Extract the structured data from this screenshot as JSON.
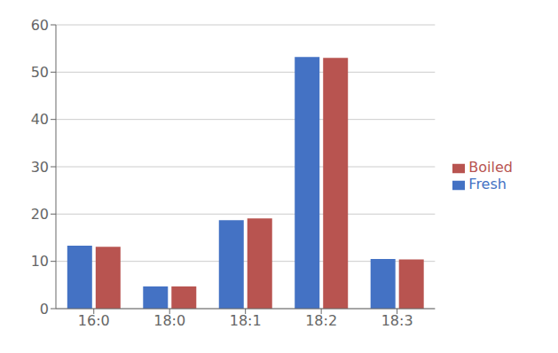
{
  "chart_data": {
    "type": "bar",
    "categories": [
      "16:0",
      "18:0",
      "18:1",
      "18:2",
      "18:3"
    ],
    "series": [
      {
        "name": "Fresh",
        "color": "#4472C4",
        "values": [
          13.3,
          4.7,
          18.7,
          53.2,
          10.5
        ]
      },
      {
        "name": "Boiled",
        "color": "#B85450",
        "values": [
          13.1,
          4.7,
          19.1,
          53.0,
          10.4
        ]
      }
    ],
    "ylim": [
      0,
      60
    ],
    "yticks": [
      0,
      10,
      20,
      30,
      40,
      50,
      60
    ],
    "grid": true,
    "legend": "right"
  }
}
